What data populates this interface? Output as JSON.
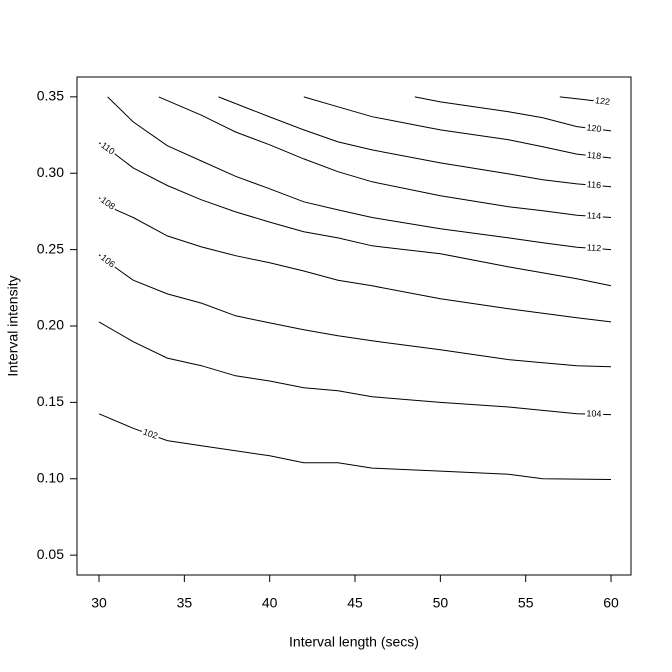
{
  "chart_data": {
    "type": "contour",
    "xlabel": "Interval length (secs)",
    "ylabel": "Interval intensity",
    "xlim": [
      28.71,
      61.17
    ],
    "ylim": [
      0.037,
      0.363
    ],
    "xticks": [
      30,
      35,
      40,
      45,
      50,
      55,
      60
    ],
    "yticks": [
      0.05,
      {
        "value": 0.1,
        "label": "0.10"
      },
      0.15,
      {
        "value": 0.2,
        "label": "0.20"
      },
      0.25,
      {
        "value": 0.3,
        "label": "0.30"
      },
      0.35
    ],
    "color": "#000000",
    "series": [
      {
        "name": "102",
        "x": [
          30,
          32,
          34,
          36,
          40,
          42,
          44,
          46,
          50,
          54,
          56,
          60
        ],
        "y": [
          0.1425,
          0.133,
          0.125,
          0.1216,
          0.115,
          0.1105,
          0.1105,
          0.107,
          0.105,
          0.103,
          0.1,
          0.0995
        ]
      },
      {
        "name": "104",
        "x": [
          30,
          32,
          34,
          36,
          38,
          40,
          42,
          44,
          46,
          50,
          54,
          58,
          60
        ],
        "y": [
          0.2027,
          0.1897,
          0.179,
          0.174,
          0.1674,
          0.164,
          0.1596,
          0.1576,
          0.1537,
          0.15,
          0.147,
          0.1425,
          0.142
        ]
      },
      {
        "name": "106",
        "x": [
          30,
          31,
          32,
          34,
          36,
          38,
          40,
          42,
          44,
          46,
          50,
          54,
          56,
          58,
          60
        ],
        "y": [
          0.2466,
          0.238,
          0.23,
          0.221,
          0.215,
          0.2067,
          0.202,
          0.1975,
          0.1936,
          0.1903,
          0.1844,
          0.178,
          0.176,
          0.174,
          0.1733
        ]
      },
      {
        "name": "108",
        "x": [
          30,
          31,
          32,
          34,
          36,
          38,
          40,
          42,
          44,
          46,
          50,
          54,
          58,
          60
        ],
        "y": [
          0.284,
          0.276,
          0.271,
          0.259,
          0.2518,
          0.246,
          0.2414,
          0.236,
          0.23,
          0.2263,
          0.2178,
          0.2113,
          0.2054,
          0.2027
        ]
      },
      {
        "name": "110",
        "x": [
          30,
          31,
          32,
          34,
          36,
          38,
          40,
          42,
          44,
          46,
          50,
          54,
          58,
          60
        ],
        "y": [
          0.32,
          0.312,
          0.3035,
          0.292,
          0.2826,
          0.2747,
          0.268,
          0.2617,
          0.2577,
          0.2525,
          0.2473,
          0.2387,
          0.2309,
          0.2263
        ]
      },
      {
        "name": "112",
        "x": [
          30.5,
          32,
          34,
          36,
          38,
          40,
          42,
          44,
          46,
          50,
          54,
          56,
          58,
          60
        ],
        "y": [
          0.35,
          0.3336,
          0.318,
          0.308,
          0.298,
          0.2898,
          0.2813,
          0.276,
          0.271,
          0.2636,
          0.2577,
          0.2545,
          0.2515,
          0.25
        ]
      },
      {
        "name": "114",
        "x": [
          33.5,
          36,
          38,
          40,
          42,
          44,
          46,
          50,
          54,
          56,
          58,
          60
        ],
        "y": [
          0.35,
          0.338,
          0.327,
          0.3186,
          0.3094,
          0.301,
          0.2944,
          0.2852,
          0.278,
          0.2754,
          0.2725,
          0.271
        ]
      },
      {
        "name": "116",
        "x": [
          37,
          40,
          42,
          44,
          46,
          50,
          54,
          56,
          58,
          60
        ],
        "y": [
          0.35,
          0.3369,
          0.3284,
          0.3205,
          0.3153,
          0.3068,
          0.2996,
          0.2957,
          0.293,
          0.2911
        ]
      },
      {
        "name": "118",
        "x": [
          42,
          44,
          46,
          50,
          54,
          56,
          58,
          60
        ],
        "y": [
          0.35,
          0.3435,
          0.337,
          0.3284,
          0.3219,
          0.3173,
          0.3125,
          0.31
        ]
      },
      {
        "name": "120",
        "x": [
          48.5,
          50,
          54,
          56,
          58,
          60
        ],
        "y": [
          0.35,
          0.3467,
          0.3402,
          0.3363,
          0.3305,
          0.3277
        ]
      },
      {
        "name": "122",
        "x": [
          57,
          58,
          59,
          60
        ],
        "y": [
          0.35,
          0.3487,
          0.3475,
          0.3461
        ]
      }
    ]
  }
}
